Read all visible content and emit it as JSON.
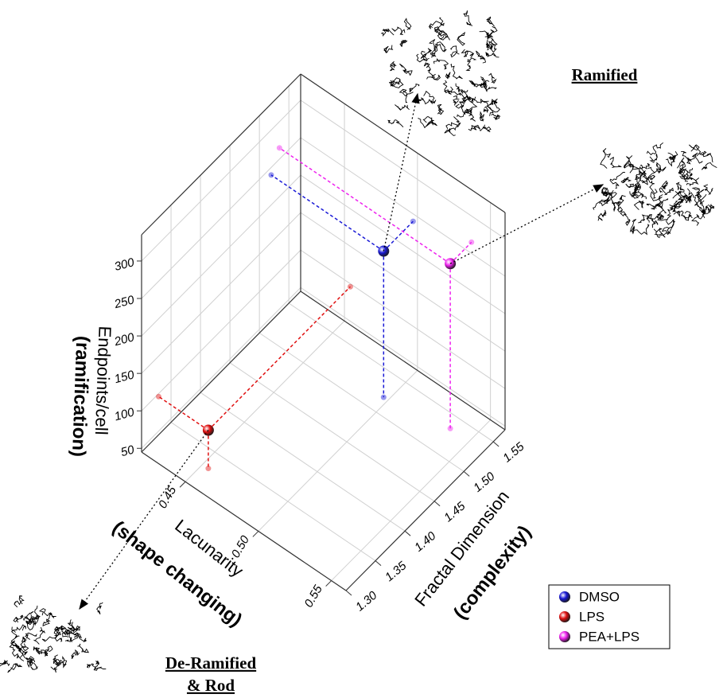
{
  "chart_data": {
    "type": "scatter3d",
    "x_label": "Lacunarity",
    "x_sublabel": "(shape changing)",
    "y_label": "Fractal Dimension",
    "y_sublabel": "(complexity)",
    "z_label": "Endpoints/cell",
    "z_sublabel": "(ramification)",
    "xlim": [
      0.42,
      0.56
    ],
    "xticks": [
      0.45,
      {
        "value": 0.5,
        "label": "0.50"
      },
      0.55
    ],
    "ylim": [
      1.3,
      1.57
    ],
    "yticks": [
      {
        "value": 1.3,
        "label": "1.30"
      },
      1.35,
      {
        "value": 1.4,
        "label": "1.40"
      },
      1.45,
      {
        "value": 1.5,
        "label": "1.50"
      },
      1.55
    ],
    "zlim": [
      45,
      335
    ],
    "zticks": [
      50,
      100,
      150,
      200,
      250,
      300
    ],
    "grid": true,
    "legend": "bottom right",
    "series": [
      {
        "name": "DMSO",
        "color": "#1a1ad6",
        "x": [
          0.497
        ],
        "y": [
          1.52
        ],
        "z": [
          240
        ]
      },
      {
        "name": "LPS",
        "color": "#e01010",
        "x": [
          0.454
        ],
        "y": [
          1.329
        ],
        "z": [
          96
        ]
      },
      {
        "name": "PEA+LPS",
        "color": "#ee22ee",
        "x": [
          0.537
        ],
        "y": [
          1.534
        ],
        "z": [
          265
        ]
      }
    ],
    "annotations": [
      "Ramified",
      "De-Ramified",
      "& Rod"
    ]
  }
}
